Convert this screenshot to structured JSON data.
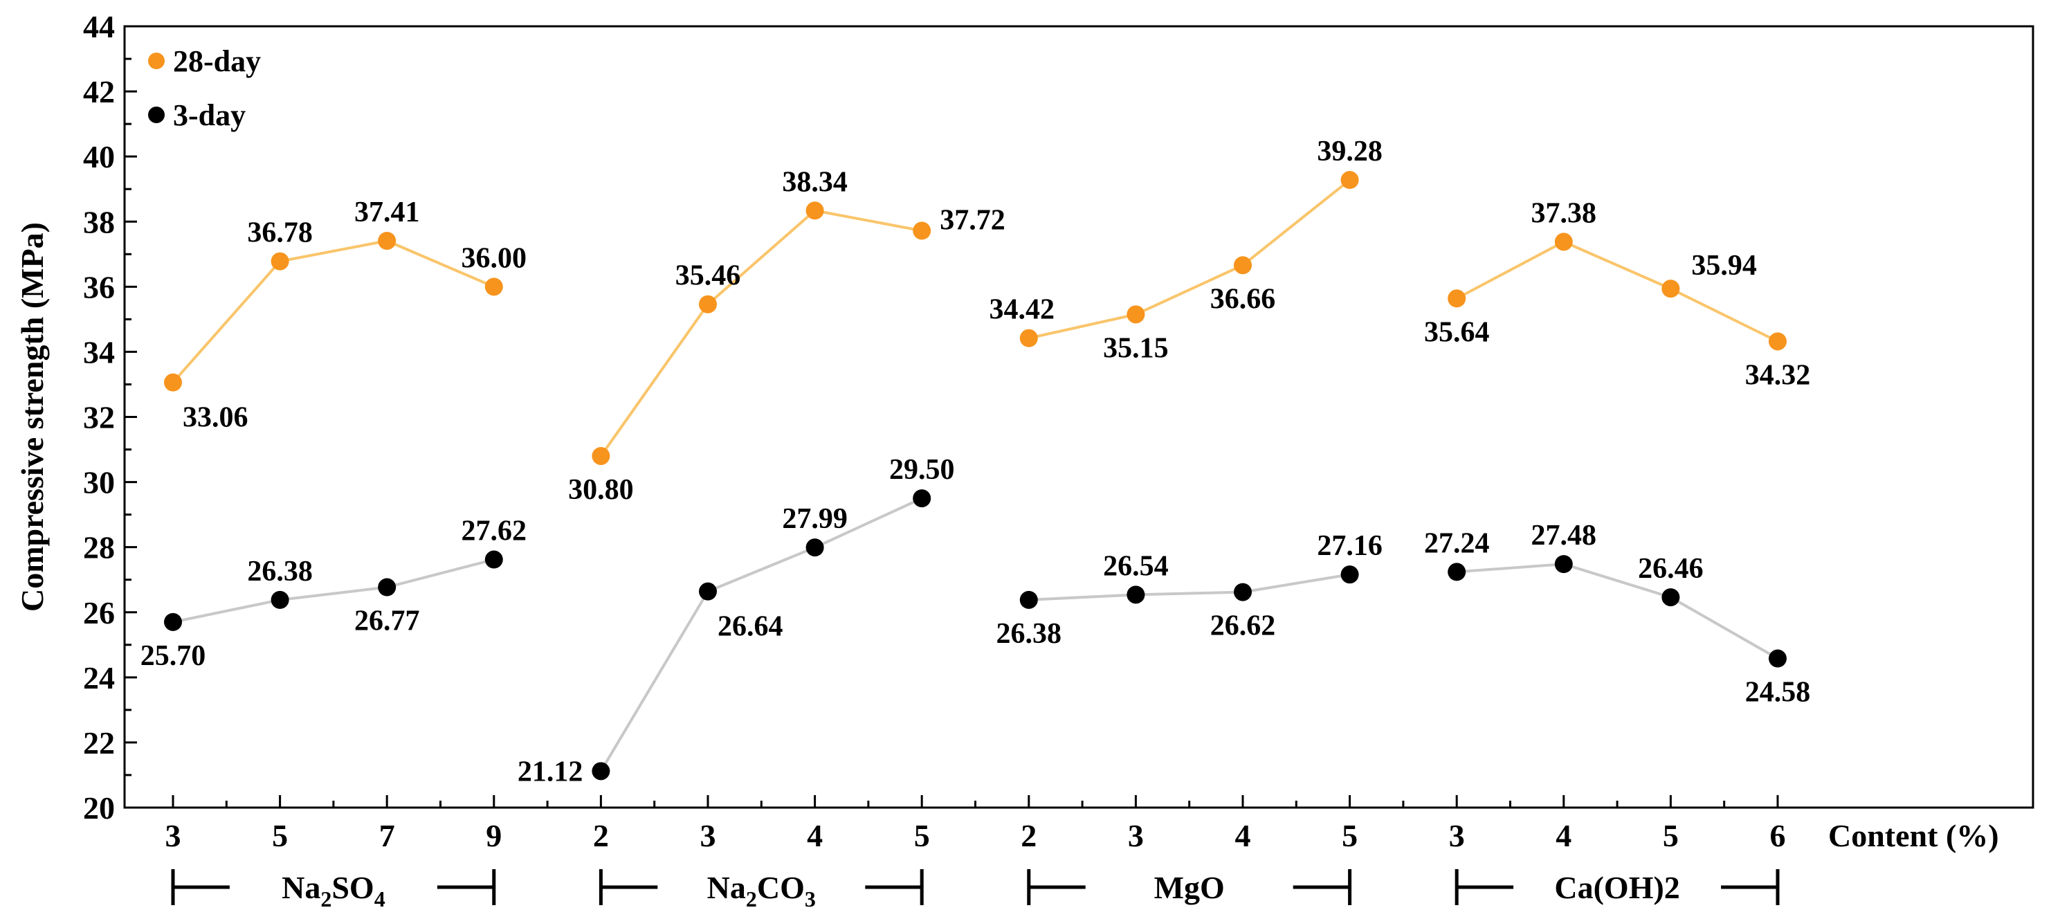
{
  "chart_data": {
    "type": "line",
    "ylabel": "Compressive strength (MPa)",
    "xlabel": "Content (%)",
    "ylim": [
      20,
      44
    ],
    "ytick_step": 2,
    "categories": [
      "3",
      "5",
      "7",
      "9",
      "2",
      "3",
      "4",
      "5",
      "2",
      "3",
      "4",
      "5",
      "3",
      "4",
      "5",
      "6"
    ],
    "groups": [
      {
        "name": "Na2SO4",
        "label_main": "Na",
        "parts": [
          [
            "Na",
            ""
          ],
          [
            "2",
            "sub"
          ],
          [
            "SO",
            ""
          ],
          [
            "4",
            "sub"
          ]
        ],
        "start": 0,
        "end": 3
      },
      {
        "name": "Na2CO3",
        "parts": [
          [
            "Na",
            ""
          ],
          [
            "2",
            "sub"
          ],
          [
            "CO",
            ""
          ],
          [
            "3",
            "sub"
          ]
        ],
        "start": 4,
        "end": 7
      },
      {
        "name": "MgO",
        "parts": [
          [
            "MgO",
            ""
          ]
        ],
        "start": 8,
        "end": 11
      },
      {
        "name": "Ca(OH)2",
        "parts": [
          [
            "Ca(OH)",
            ""
          ],
          [
            "2",
            ""
          ]
        ],
        "start": 12,
        "end": 15
      }
    ],
    "series": [
      {
        "name": "28-day",
        "color": "#F7941D",
        "line_color": "#F9C56B",
        "values": [
          33.06,
          36.78,
          37.41,
          36.0,
          30.8,
          35.46,
          38.34,
          37.72,
          34.42,
          35.15,
          36.66,
          39.28,
          35.64,
          37.38,
          35.94,
          34.32
        ],
        "labels": [
          "33.06",
          "36.78",
          "37.41",
          "36.00",
          "30.80",
          "35.46",
          "38.34",
          "37.72",
          "34.42",
          "35.15",
          "36.66",
          "39.28",
          "35.64",
          "37.38",
          "35.94",
          "34.32"
        ],
        "label_pos": [
          "below-right",
          "above",
          "above",
          "above",
          "below",
          "above",
          "above",
          "right",
          "above-left",
          "below",
          "below",
          "above",
          "below",
          "above",
          "above-right",
          "below"
        ]
      },
      {
        "name": "3-day",
        "color": "#000000",
        "line_color": "#C8C8C8",
        "values": [
          25.7,
          26.38,
          26.77,
          27.62,
          21.12,
          26.64,
          27.99,
          29.5,
          26.38,
          26.54,
          26.62,
          27.16,
          27.24,
          27.48,
          26.46,
          24.58
        ],
        "labels": [
          "25.70",
          "26.38",
          "26.77",
          "27.62",
          "21.12",
          "26.64",
          "27.99",
          "29.50",
          "26.38",
          "26.54",
          "26.62",
          "27.16",
          "27.24",
          "27.48",
          "26.46",
          "24.58"
        ],
        "label_pos": [
          "below",
          "above",
          "below",
          "above",
          "left",
          "below-right",
          "above",
          "above",
          "below",
          "above",
          "below",
          "above",
          "above",
          "above",
          "above",
          "below"
        ]
      }
    ],
    "legend": {
      "position": "top-left",
      "entries": [
        "28-day",
        "3-day"
      ]
    }
  }
}
